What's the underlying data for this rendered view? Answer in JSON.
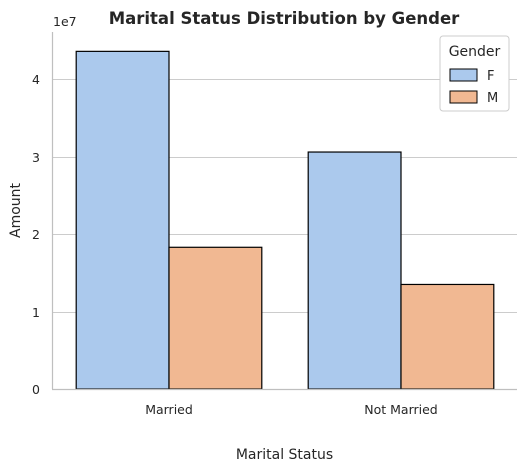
{
  "chart_data": {
    "type": "bar",
    "title": "Marital Status Distribution by Gender",
    "xlabel": "Marital Status",
    "ylabel": "Amount",
    "categories": [
      "Married",
      "Not Married"
    ],
    "series": [
      {
        "name": "F",
        "values": [
          43600000,
          30600000
        ],
        "color": "#abc9ed"
      },
      {
        "name": "M",
        "values": [
          18300000,
          13500000
        ],
        "color": "#f1b892"
      }
    ],
    "ylim": [
      0,
      46100000
    ],
    "yticks": [
      0,
      1,
      2,
      3,
      4
    ],
    "yscale_label": "1e7",
    "grid": "horizontal",
    "legend": {
      "title": "Gender",
      "placement": "top-right"
    }
  }
}
